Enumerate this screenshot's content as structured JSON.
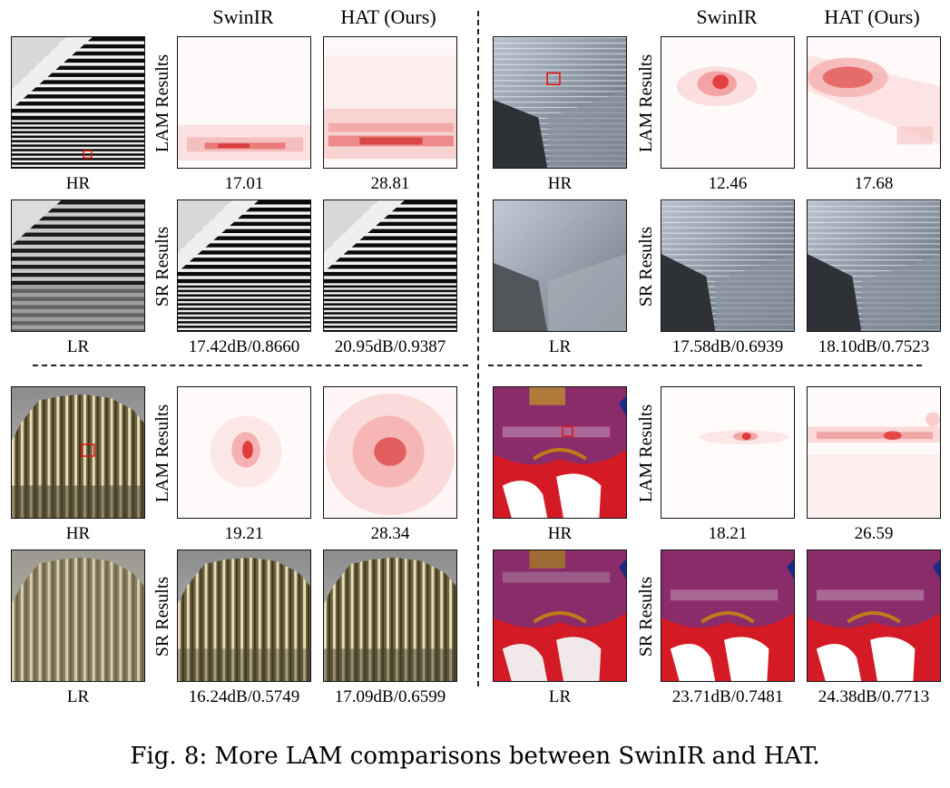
{
  "headers": {
    "left_swinir": "SwinIR",
    "left_hat": "HAT (Ours)",
    "right_swinir": "SwinIR",
    "right_hat": "HAT (Ours)"
  },
  "row_labels": {
    "lam": "LAM Results",
    "sr": "SR Results"
  },
  "panels": [
    {
      "id": "stripes",
      "hr_label": "HR",
      "lr_label": "LR",
      "lam_swinir": "17.01",
      "lam_hat": "28.81",
      "sr_swinir": "17.42dB/0.8660",
      "sr_hat": "20.95dB/0.9387"
    },
    {
      "id": "glass-building",
      "hr_label": "HR",
      "lr_label": "LR",
      "lam_swinir": "12.46",
      "lam_hat": "17.68",
      "sr_swinir": "17.58dB/0.6939",
      "sr_hat": "18.10dB/0.7523"
    },
    {
      "id": "tower",
      "hr_label": "HR",
      "lr_label": "LR",
      "lam_swinir": "19.21",
      "lam_hat": "28.34",
      "sr_swinir": "16.24dB/0.5749",
      "sr_hat": "17.09dB/0.6599"
    },
    {
      "id": "manga",
      "hr_label": "HR",
      "lr_label": "LR",
      "lam_swinir": "18.21",
      "lam_hat": "26.59",
      "sr_swinir": "23.71dB/0.7481",
      "sr_hat": "24.38dB/0.7713"
    }
  ],
  "caption": "Fig. 8: More LAM comparisons between SwinIR and HAT."
}
